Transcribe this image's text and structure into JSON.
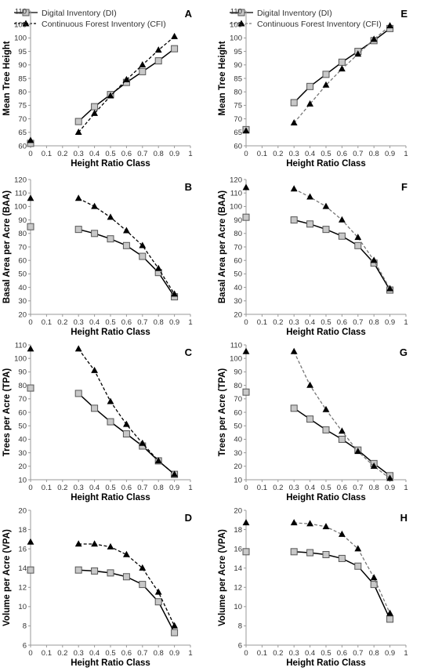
{
  "legend": {
    "di_label": "Digital Inventory (DI)",
    "cfi_label": "Continuous Forest Inventory (CFI)"
  },
  "colors": {
    "di_marker_fill": "#c8c8c8",
    "di_marker_stroke": "#555555",
    "line": "#000000",
    "cfi_right_line": "#777777",
    "axis": "#999999"
  },
  "chart_data": [
    {
      "panel": "A",
      "type": "line",
      "xlabel": "Height Ratio Class",
      "ylabel": "Mean Tree Height",
      "xlim": [
        0,
        1
      ],
      "ylim": [
        60,
        110
      ],
      "xticks": [
        0,
        0.1,
        0.2,
        0.3,
        0.4,
        0.5,
        0.6,
        0.7,
        0.8,
        0.9,
        1
      ],
      "yticks": [
        60,
        65,
        70,
        75,
        80,
        85,
        90,
        95,
        100,
        105,
        110
      ],
      "series": [
        {
          "name": "Digital Inventory (DI)",
          "marker": "square",
          "line": "solid",
          "x": [
            0,
            0.3,
            0.4,
            0.5,
            0.6,
            0.7,
            0.8,
            0.9
          ],
          "y": [
            60.9,
            69.0,
            74.5,
            79.0,
            83.5,
            87.5,
            91.5,
            96.0
          ],
          "connected_from": 1
        },
        {
          "name": "Continuous Forest Inventory (CFI)",
          "marker": "triangle",
          "line": "dashed",
          "x": [
            0,
            0.3,
            0.4,
            0.5,
            0.6,
            0.7,
            0.8,
            0.9
          ],
          "y": [
            62.0,
            65.0,
            72.0,
            78.5,
            84.5,
            90.0,
            95.5,
            100.5
          ],
          "connected_from": 1
        }
      ]
    },
    {
      "panel": "E",
      "type": "line",
      "xlabel": "Height Ratio Class",
      "ylabel": "Mean Tree Height",
      "xlim": [
        0,
        1
      ],
      "ylim": [
        60,
        110
      ],
      "xticks": [
        0,
        0.1,
        0.2,
        0.3,
        0.4,
        0.5,
        0.6,
        0.7,
        0.8,
        0.9,
        1
      ],
      "yticks": [
        60,
        65,
        70,
        75,
        80,
        85,
        90,
        95,
        100,
        105,
        110
      ],
      "series": [
        {
          "name": "Digital Inventory (DI)",
          "marker": "square",
          "line": "solid",
          "x": [
            0,
            0.3,
            0.4,
            0.5,
            0.6,
            0.7,
            0.8,
            0.9
          ],
          "y": [
            66.0,
            76.0,
            82.0,
            86.5,
            91.0,
            95.0,
            99.0,
            103.5
          ],
          "connected_from": 1
        },
        {
          "name": "Continuous Forest Inventory (CFI)",
          "marker": "triangle",
          "line": "dashed",
          "x": [
            0,
            0.3,
            0.4,
            0.5,
            0.6,
            0.7,
            0.8,
            0.9
          ],
          "y": [
            65.5,
            68.5,
            75.5,
            82.5,
            88.5,
            94.0,
            99.5,
            104.5
          ],
          "connected_from": 1
        }
      ]
    },
    {
      "panel": "B",
      "type": "line",
      "xlabel": "Height Ratio Class",
      "ylabel": "Basal Area per Acre (BAA)",
      "xlim": [
        0,
        1
      ],
      "ylim": [
        20,
        120
      ],
      "xticks": [
        0,
        0.1,
        0.2,
        0.3,
        0.4,
        0.5,
        0.6,
        0.7,
        0.8,
        0.9,
        1
      ],
      "yticks": [
        20,
        30,
        40,
        50,
        60,
        70,
        80,
        90,
        100,
        110,
        120
      ],
      "series": [
        {
          "name": "Digital Inventory (DI)",
          "marker": "square",
          "line": "solid",
          "x": [
            0,
            0.3,
            0.4,
            0.5,
            0.6,
            0.7,
            0.8,
            0.9
          ],
          "y": [
            85,
            83,
            80,
            76,
            71,
            63,
            51,
            33
          ],
          "connected_from": 1
        },
        {
          "name": "Continuous Forest Inventory (CFI)",
          "marker": "triangle",
          "line": "dashed",
          "x": [
            0,
            0.3,
            0.4,
            0.5,
            0.6,
            0.7,
            0.8,
            0.9
          ],
          "y": [
            106,
            106,
            100,
            92,
            82,
            71,
            54,
            35
          ],
          "connected_from": 1
        }
      ]
    },
    {
      "panel": "F",
      "type": "line",
      "xlabel": "Height Ratio Class",
      "ylabel": "Basal Area per Acre (BAA)",
      "xlim": [
        0,
        1
      ],
      "ylim": [
        20,
        120
      ],
      "xticks": [
        0,
        0.1,
        0.2,
        0.3,
        0.4,
        0.5,
        0.6,
        0.7,
        0.8,
        0.9,
        1
      ],
      "yticks": [
        20,
        30,
        40,
        50,
        60,
        70,
        80,
        90,
        100,
        110,
        120
      ],
      "series": [
        {
          "name": "Digital Inventory (DI)",
          "marker": "square",
          "line": "solid",
          "x": [
            0,
            0.3,
            0.4,
            0.5,
            0.6,
            0.7,
            0.8,
            0.9
          ],
          "y": [
            92,
            90,
            87,
            83,
            78,
            71,
            58,
            38
          ],
          "connected_from": 1
        },
        {
          "name": "Continuous Forest Inventory (CFI)",
          "marker": "triangle",
          "line": "dashed",
          "x": [
            0,
            0.3,
            0.4,
            0.5,
            0.6,
            0.7,
            0.8,
            0.9
          ],
          "y": [
            114,
            113,
            107,
            100,
            90,
            77,
            60,
            39
          ],
          "connected_from": 1
        }
      ]
    },
    {
      "panel": "C",
      "type": "line",
      "xlabel": "Height Ratio Class",
      "ylabel": "Trees per Acre (TPA)",
      "xlim": [
        0,
        1
      ],
      "ylim": [
        10,
        110
      ],
      "xticks": [
        0,
        0.1,
        0.2,
        0.3,
        0.4,
        0.5,
        0.6,
        0.7,
        0.8,
        0.9,
        1
      ],
      "yticks": [
        10,
        20,
        30,
        40,
        50,
        60,
        70,
        80,
        90,
        100,
        110
      ],
      "series": [
        {
          "name": "Digital Inventory (DI)",
          "marker": "square",
          "line": "solid",
          "x": [
            0,
            0.3,
            0.4,
            0.5,
            0.6,
            0.7,
            0.8,
            0.9
          ],
          "y": [
            78,
            74,
            63,
            53,
            44,
            35,
            24,
            14
          ],
          "connected_from": 1
        },
        {
          "name": "Continuous Forest Inventory (CFI)",
          "marker": "triangle",
          "line": "dashed",
          "x": [
            0,
            0.3,
            0.4,
            0.5,
            0.6,
            0.7,
            0.8,
            0.9
          ],
          "y": [
            107,
            107,
            91,
            68,
            51,
            37,
            24,
            14
          ],
          "connected_from": 1
        }
      ]
    },
    {
      "panel": "G",
      "type": "line",
      "xlabel": "Height Ratio Class",
      "ylabel": "Trees per Acre (TPA)",
      "xlim": [
        0,
        1
      ],
      "ylim": [
        10,
        110
      ],
      "xticks": [
        0,
        0.1,
        0.2,
        0.3,
        0.4,
        0.5,
        0.6,
        0.7,
        0.8,
        0.9,
        1
      ],
      "yticks": [
        10,
        20,
        30,
        40,
        50,
        60,
        70,
        80,
        90,
        100,
        110
      ],
      "series": [
        {
          "name": "Digital Inventory (DI)",
          "marker": "square",
          "line": "solid",
          "x": [
            0,
            0.3,
            0.4,
            0.5,
            0.6,
            0.7,
            0.8,
            0.9
          ],
          "y": [
            75,
            63,
            55,
            47,
            40,
            32,
            22,
            13
          ],
          "connected_from": 1
        },
        {
          "name": "Continuous Forest Inventory (CFI)",
          "marker": "triangle",
          "line": "dashed",
          "x": [
            0,
            0.3,
            0.4,
            0.5,
            0.6,
            0.7,
            0.8,
            0.9
          ],
          "y": [
            105,
            105,
            80,
            62,
            46,
            31,
            20,
            11
          ],
          "connected_from": 1
        }
      ]
    },
    {
      "panel": "D",
      "type": "line",
      "xlabel": "Height Ratio Class",
      "ylabel": "Volume per Acre (VPA)",
      "xlim": [
        0,
        1
      ],
      "ylim": [
        6,
        20
      ],
      "xticks": [
        0,
        0.1,
        0.2,
        0.3,
        0.4,
        0.5,
        0.6,
        0.7,
        0.8,
        0.9,
        1
      ],
      "yticks": [
        6,
        8,
        10,
        12,
        14,
        16,
        18,
        20
      ],
      "series": [
        {
          "name": "Digital Inventory (DI)",
          "marker": "square",
          "line": "solid",
          "x": [
            0,
            0.3,
            0.4,
            0.5,
            0.6,
            0.7,
            0.8,
            0.9
          ],
          "y": [
            13.8,
            13.8,
            13.7,
            13.5,
            13.1,
            12.3,
            10.5,
            7.3
          ],
          "connected_from": 1
        },
        {
          "name": "Continuous Forest Inventory (CFI)",
          "marker": "triangle",
          "line": "dashed",
          "x": [
            0,
            0.3,
            0.4,
            0.5,
            0.6,
            0.7,
            0.8,
            0.9
          ],
          "y": [
            16.7,
            16.5,
            16.5,
            16.2,
            15.4,
            14.0,
            11.5,
            8.0
          ],
          "connected_from": 1
        }
      ]
    },
    {
      "panel": "H",
      "type": "line",
      "xlabel": "Height Ratio Class",
      "ylabel": "Volume per Acre (VPA)",
      "xlim": [
        0,
        1
      ],
      "ylim": [
        6,
        20
      ],
      "xticks": [
        0,
        0.1,
        0.2,
        0.3,
        0.4,
        0.5,
        0.6,
        0.7,
        0.8,
        0.9,
        1
      ],
      "yticks": [
        6,
        8,
        10,
        12,
        14,
        16,
        18,
        20
      ],
      "series": [
        {
          "name": "Digital Inventory (DI)",
          "marker": "square",
          "line": "solid",
          "x": [
            0,
            0.3,
            0.4,
            0.5,
            0.6,
            0.7,
            0.8,
            0.9
          ],
          "y": [
            15.7,
            15.7,
            15.6,
            15.4,
            15.0,
            14.2,
            12.3,
            8.7
          ],
          "connected_from": 1
        },
        {
          "name": "Continuous Forest Inventory (CFI)",
          "marker": "triangle",
          "line": "dashed",
          "x": [
            0,
            0.3,
            0.4,
            0.5,
            0.6,
            0.7,
            0.8,
            0.9
          ],
          "y": [
            18.7,
            18.7,
            18.6,
            18.3,
            17.5,
            16.0,
            13.0,
            9.3
          ],
          "connected_from": 1
        }
      ]
    }
  ]
}
